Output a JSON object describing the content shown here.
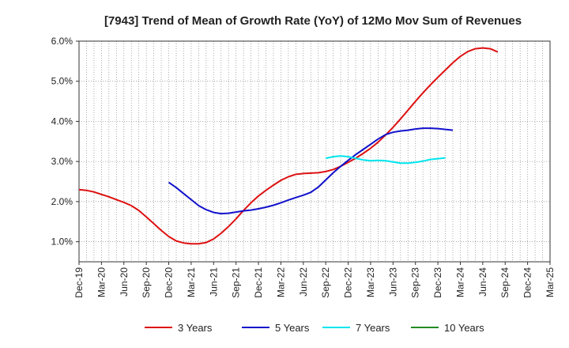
{
  "chart_data": {
    "type": "line",
    "title": "[7943]  Trend of Mean of Growth Rate (YoY) of 12Mo Mov Sum of Revenues",
    "xlabel": "",
    "ylabel": "",
    "x_tick_labels": [
      "Dec-19",
      "Mar-20",
      "Jun-20",
      "Sep-20",
      "Dec-20",
      "Mar-21",
      "Jun-21",
      "Sep-21",
      "Dec-21",
      "Mar-22",
      "Jun-22",
      "Sep-22",
      "Dec-22",
      "Mar-23",
      "Jun-23",
      "Sep-23",
      "Dec-23",
      "Mar-24",
      "Jun-24",
      "Sep-24",
      "Dec-24",
      "Mar-25"
    ],
    "y_ticks": [
      1.0,
      2.0,
      3.0,
      4.0,
      5.0,
      6.0
    ],
    "y_tick_labels": [
      "1.0%",
      "2.0%",
      "3.0%",
      "4.0%",
      "5.0%",
      "6.0%"
    ],
    "ylim": [
      0.5,
      6.0
    ],
    "xlim_months": [
      0,
      63
    ],
    "grid": true,
    "series": [
      {
        "name": "3 Years",
        "color": "#dd1111",
        "points": [
          [
            0,
            2.3
          ],
          [
            1,
            2.28
          ],
          [
            2,
            2.24
          ],
          [
            3,
            2.18
          ],
          [
            4,
            2.12
          ],
          [
            5,
            2.05
          ],
          [
            6,
            1.98
          ],
          [
            7,
            1.9
          ],
          [
            8,
            1.78
          ],
          [
            9,
            1.62
          ],
          [
            10,
            1.45
          ],
          [
            11,
            1.28
          ],
          [
            12,
            1.13
          ],
          [
            13,
            1.02
          ],
          [
            14,
            0.97
          ],
          [
            15,
            0.95
          ],
          [
            16,
            0.95
          ],
          [
            17,
            0.98
          ],
          [
            18,
            1.07
          ],
          [
            19,
            1.21
          ],
          [
            20,
            1.38
          ],
          [
            21,
            1.57
          ],
          [
            22,
            1.78
          ],
          [
            23,
            1.97
          ],
          [
            24,
            2.14
          ],
          [
            25,
            2.28
          ],
          [
            26,
            2.41
          ],
          [
            27,
            2.53
          ],
          [
            28,
            2.62
          ],
          [
            29,
            2.68
          ],
          [
            30,
            2.7
          ],
          [
            31,
            2.71
          ],
          [
            32,
            2.72
          ],
          [
            33,
            2.75
          ],
          [
            34,
            2.8
          ],
          [
            35,
            2.88
          ],
          [
            36,
            2.98
          ],
          [
            37,
            3.08
          ],
          [
            38,
            3.2
          ],
          [
            39,
            3.33
          ],
          [
            40,
            3.48
          ],
          [
            41,
            3.66
          ],
          [
            42,
            3.85
          ],
          [
            43,
            4.06
          ],
          [
            44,
            4.28
          ],
          [
            45,
            4.5
          ],
          [
            46,
            4.71
          ],
          [
            47,
            4.91
          ],
          [
            48,
            5.1
          ],
          [
            49,
            5.28
          ],
          [
            50,
            5.46
          ],
          [
            51,
            5.62
          ],
          [
            52,
            5.74
          ],
          [
            53,
            5.81
          ],
          [
            54,
            5.83
          ],
          [
            55,
            5.81
          ],
          [
            56,
            5.73
          ]
        ]
      },
      {
        "name": "5 Years",
        "color": "#1111cc",
        "points": [
          [
            12,
            2.48
          ],
          [
            13,
            2.35
          ],
          [
            14,
            2.2
          ],
          [
            15,
            2.05
          ],
          [
            16,
            1.9
          ],
          [
            17,
            1.8
          ],
          [
            18,
            1.73
          ],
          [
            19,
            1.7
          ],
          [
            20,
            1.71
          ],
          [
            21,
            1.74
          ],
          [
            22,
            1.77
          ],
          [
            23,
            1.79
          ],
          [
            24,
            1.82
          ],
          [
            25,
            1.86
          ],
          [
            26,
            1.91
          ],
          [
            27,
            1.97
          ],
          [
            28,
            2.04
          ],
          [
            29,
            2.1
          ],
          [
            30,
            2.16
          ],
          [
            31,
            2.23
          ],
          [
            32,
            2.36
          ],
          [
            33,
            2.54
          ],
          [
            34,
            2.72
          ],
          [
            35,
            2.88
          ],
          [
            36,
            3.03
          ],
          [
            37,
            3.17
          ],
          [
            38,
            3.3
          ],
          [
            39,
            3.43
          ],
          [
            40,
            3.56
          ],
          [
            41,
            3.67
          ],
          [
            42,
            3.73
          ],
          [
            43,
            3.76
          ],
          [
            44,
            3.78
          ],
          [
            45,
            3.81
          ],
          [
            46,
            3.83
          ],
          [
            47,
            3.83
          ],
          [
            48,
            3.82
          ],
          [
            49,
            3.8
          ],
          [
            50,
            3.78
          ]
        ]
      },
      {
        "name": "7 Years",
        "color": "#00e5ee",
        "points": [
          [
            33,
            3.08
          ],
          [
            34,
            3.12
          ],
          [
            35,
            3.14
          ],
          [
            36,
            3.12
          ],
          [
            37,
            3.08
          ],
          [
            38,
            3.04
          ],
          [
            39,
            3.02
          ],
          [
            40,
            3.03
          ],
          [
            41,
            3.02
          ],
          [
            42,
            2.99
          ],
          [
            43,
            2.96
          ],
          [
            44,
            2.96
          ],
          [
            45,
            2.98
          ],
          [
            46,
            3.01
          ],
          [
            47,
            3.05
          ],
          [
            48,
            3.07
          ],
          [
            49,
            3.09
          ]
        ]
      },
      {
        "name": "10 Years",
        "color": "#228B22",
        "points": []
      }
    ]
  }
}
